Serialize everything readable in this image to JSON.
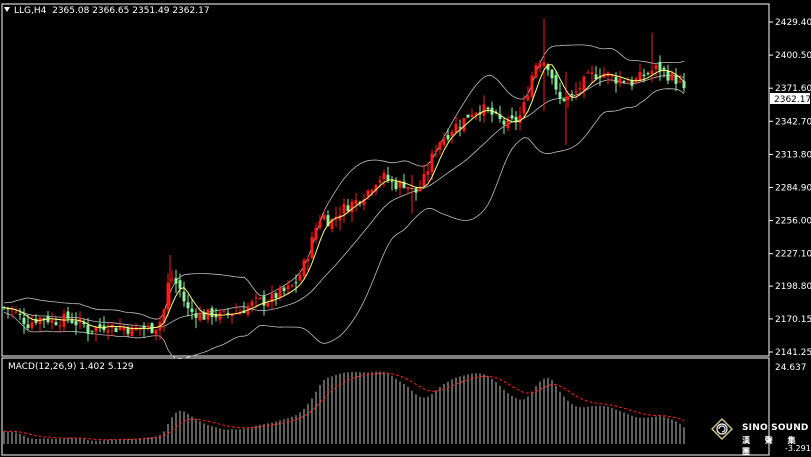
{
  "header": {
    "symbol_timeframe": "LLG,H4",
    "ohlc": "2365.08 2366.65 2351.49 2362.17"
  },
  "macd_header": {
    "label": "MACD(12,26,9)",
    "values": "1.402 5.129"
  },
  "logo": {
    "brand": "SINO SOUND",
    "sub": "漢 聲 集 團"
  },
  "colors": {
    "background": "#000000",
    "bull_candle": "#ff1a1a",
    "bear_candle": "#8ff09a",
    "ma_line": "#ffff7f",
    "band_line": "#c0c0c0",
    "macd_hist": "#c0c0c0",
    "macd_signal": "#ff2020",
    "axis_text": "#ffffff"
  },
  "chart_data": [
    {
      "type": "candlestick",
      "title": "LLG,H4",
      "y_ticks": [
        2141.25,
        2170.15,
        2198.8,
        2227.1,
        2256.0,
        2284.9,
        2313.8,
        2342.7,
        2371.6,
        2400.5,
        2429.4
      ],
      "y_tick_labels": [
        "2141.25",
        "2170.15",
        "2198.80",
        "2227.10",
        "2256.00",
        "2284.90",
        "2313.80",
        "2342.70",
        "2371.60",
        "2400.50",
        "2429.40"
      ],
      "ylim": [
        2141.25,
        2429.4
      ],
      "last_price": "2362.17",
      "close_path": [
        [
          0,
          2180
        ],
        [
          8,
          2178
        ],
        [
          16,
          2172
        ],
        [
          24,
          2166
        ],
        [
          32,
          2170
        ],
        [
          40,
          2172
        ],
        [
          48,
          2168
        ],
        [
          56,
          2169
        ],
        [
          64,
          2171
        ],
        [
          72,
          2167
        ],
        [
          80,
          2165
        ],
        [
          84,
          2160
        ],
        [
          88,
          2162
        ],
        [
          96,
          2163
        ],
        [
          104,
          2165
        ],
        [
          112,
          2162
        ],
        [
          120,
          2163
        ],
        [
          128,
          2160
        ],
        [
          136,
          2163
        ],
        [
          144,
          2162
        ],
        [
          150,
          2162
        ],
        [
          156,
          2168
        ],
        [
          160,
          2178
        ],
        [
          163,
          2196
        ],
        [
          166,
          2208
        ],
        [
          170,
          2202
        ],
        [
          174,
          2200
        ],
        [
          178,
          2192
        ],
        [
          182,
          2180
        ],
        [
          186,
          2176
        ],
        [
          190,
          2176
        ],
        [
          194,
          2175
        ],
        [
          198,
          2173
        ],
        [
          202,
          2172
        ],
        [
          206,
          2176
        ],
        [
          210,
          2174
        ],
        [
          214,
          2173
        ],
        [
          218,
          2172
        ],
        [
          222,
          2174
        ],
        [
          226,
          2177
        ],
        [
          230,
          2176
        ],
        [
          234,
          2176
        ],
        [
          238,
          2178
        ],
        [
          242,
          2180
        ],
        [
          246,
          2182
        ],
        [
          250,
          2184
        ],
        [
          254,
          2186
        ],
        [
          258,
          2185
        ],
        [
          262,
          2186
        ],
        [
          266,
          2187
        ],
        [
          270,
          2189
        ],
        [
          274,
          2192
        ],
        [
          278,
          2193
        ],
        [
          282,
          2195
        ],
        [
          286,
          2197
        ],
        [
          290,
          2200
        ],
        [
          294,
          2205
        ],
        [
          298,
          2213
        ],
        [
          302,
          2222
        ],
        [
          306,
          2232
        ],
        [
          310,
          2245
        ],
        [
          314,
          2255
        ],
        [
          318,
          2262
        ],
        [
          322,
          2258
        ],
        [
          326,
          2254
        ],
        [
          330,
          2258
        ],
        [
          334,
          2262
        ],
        [
          338,
          2266
        ],
        [
          342,
          2268
        ],
        [
          346,
          2270
        ],
        [
          350,
          2272
        ],
        [
          354,
          2274
        ],
        [
          358,
          2278
        ],
        [
          362,
          2280
        ],
        [
          366,
          2284
        ],
        [
          370,
          2290
        ],
        [
          374,
          2292
        ],
        [
          378,
          2294
        ],
        [
          382,
          2293
        ],
        [
          386,
          2290
        ],
        [
          390,
          2288
        ],
        [
          394,
          2287
        ],
        [
          398,
          2288
        ],
        [
          402,
          2289
        ],
        [
          406,
          2284
        ],
        [
          410,
          2280
        ],
        [
          414,
          2282
        ],
        [
          418,
          2288
        ],
        [
          422,
          2296
        ],
        [
          426,
          2306
        ],
        [
          430,
          2316
        ],
        [
          434,
          2324
        ],
        [
          438,
          2328
        ],
        [
          442,
          2330
        ],
        [
          446,
          2334
        ],
        [
          450,
          2338
        ],
        [
          454,
          2340
        ],
        [
          458,
          2342
        ],
        [
          462,
          2346
        ],
        [
          466,
          2350
        ],
        [
          470,
          2352
        ],
        [
          474,
          2353
        ],
        [
          478,
          2354
        ],
        [
          482,
          2352
        ],
        [
          486,
          2350
        ],
        [
          490,
          2347
        ],
        [
          494,
          2344
        ],
        [
          498,
          2342
        ],
        [
          502,
          2340
        ],
        [
          506,
          2341
        ],
        [
          510,
          2343
        ],
        [
          514,
          2345
        ],
        [
          518,
          2350
        ],
        [
          522,
          2362
        ],
        [
          526,
          2376
        ],
        [
          530,
          2390
        ],
        [
          534,
          2396
        ],
        [
          538,
          2398
        ],
        [
          542,
          2394
        ],
        [
          546,
          2390
        ],
        [
          550,
          2374
        ],
        [
          554,
          2360
        ],
        [
          558,
          2362
        ],
        [
          562,
          2364
        ],
        [
          566,
          2362
        ],
        [
          570,
          2366
        ],
        [
          574,
          2370
        ],
        [
          578,
          2375
        ],
        [
          582,
          2379
        ],
        [
          586,
          2382
        ],
        [
          590,
          2383
        ],
        [
          594,
          2384
        ],
        [
          598,
          2385
        ],
        [
          602,
          2384
        ],
        [
          606,
          2382
        ],
        [
          610,
          2380
        ],
        [
          614,
          2379
        ],
        [
          618,
          2380
        ],
        [
          622,
          2378
        ],
        [
          626,
          2376
        ],
        [
          630,
          2377
        ],
        [
          634,
          2380
        ],
        [
          638,
          2382
        ],
        [
          642,
          2384
        ],
        [
          646,
          2386
        ],
        [
          650,
          2388
        ],
        [
          654,
          2390
        ],
        [
          658,
          2388
        ],
        [
          662,
          2384
        ],
        [
          666,
          2382
        ],
        [
          670,
          2380
        ],
        [
          674,
          2378
        ],
        [
          678,
          2372
        ],
        [
          682,
          2364
        ]
      ]
    },
    {
      "type": "bar",
      "title": "MACD(12,26,9)",
      "macd_value": 1.402,
      "signal_value": 5.129,
      "y_tick_labels": [
        "24.637",
        "-3.291"
      ],
      "ylim": [
        -3.291,
        24.637
      ]
    }
  ]
}
